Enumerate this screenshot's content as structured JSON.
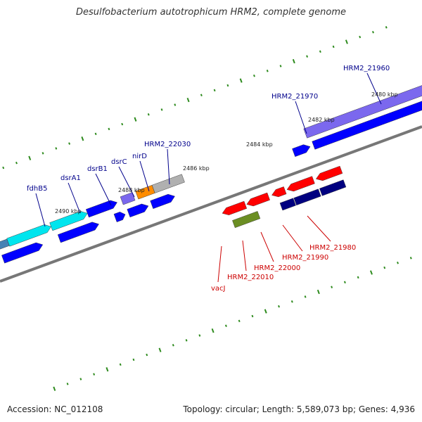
{
  "title": "Desulfobacterium autotrophicum HRM2, complete genome",
  "footer": {
    "accession": "Accession: NC_012108",
    "info": "Topology: circular; Length: 5,589,073 bp; Genes: 4,936"
  },
  "colors": {
    "backbone": "#777777",
    "tick": "#2e8b1e",
    "forward_label": "#00008b",
    "reverse_label": "#cc0000",
    "blue": "#0000ff",
    "navy": "#000080",
    "cyan": "#00e5ee",
    "red": "#ff0000",
    "olive": "#6b8e23",
    "orange": "#ff8c00",
    "gray": "#b0b0b0",
    "slate": "#7b68ee",
    "steel": "#4682b4"
  },
  "kbp_labels": [
    "2480 kbp",
    "2482 kbp",
    "2484 kbp",
    "2486 kbp",
    "2488 kbp",
    "2490 kbp"
  ],
  "forward_labels": [
    "HRM2_21960",
    "HRM2_21970",
    "HRM2_22030",
    "nirD",
    "dsrC",
    "dsrB1",
    "dsrA1",
    "fdhB5"
  ],
  "reverse_labels": [
    "HRM2_21980",
    "HRM2_21990",
    "HRM2_22000",
    "HRM2_22010",
    "vacJ"
  ]
}
